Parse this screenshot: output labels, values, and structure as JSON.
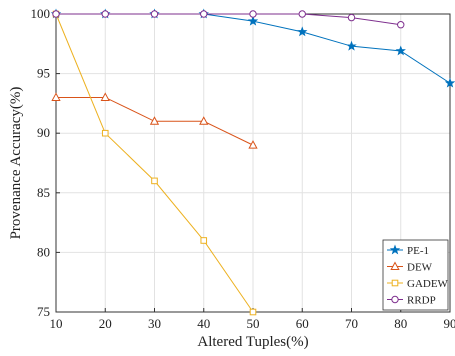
{
  "chart_data": {
    "type": "line",
    "xlabel": "Altered Tuples(%)",
    "ylabel": "Provenance Accuracy(%)",
    "xlim": [
      10,
      90
    ],
    "ylim": [
      75,
      100
    ],
    "xticks": [
      10,
      20,
      30,
      40,
      50,
      60,
      70,
      80,
      90
    ],
    "yticks": [
      75,
      80,
      85,
      90,
      95,
      100
    ],
    "grid": true,
    "legend_position": "bottom-right",
    "series": [
      {
        "name": "PE-1",
        "color": "#0072BD",
        "marker": "star",
        "x": [
          10,
          20,
          30,
          40,
          50,
          60,
          70,
          80,
          90
        ],
        "y": [
          100,
          100,
          100,
          100,
          99.4,
          98.5,
          97.3,
          96.9,
          94.2
        ]
      },
      {
        "name": "DEW",
        "color": "#D95319",
        "marker": "triangle",
        "x": [
          10,
          20,
          30,
          40,
          50
        ],
        "y": [
          93,
          93,
          91,
          91,
          89
        ]
      },
      {
        "name": "GADEW",
        "color": "#EDB120",
        "marker": "square",
        "x": [
          10,
          20,
          30,
          40,
          50
        ],
        "y": [
          100,
          90,
          86,
          81,
          75
        ]
      },
      {
        "name": "RRDP",
        "color": "#7E2F8E",
        "marker": "circle",
        "x": [
          10,
          20,
          30,
          40,
          50,
          60,
          70,
          80
        ],
        "y": [
          100,
          100,
          100,
          100,
          100,
          100,
          99.7,
          99.1
        ]
      }
    ]
  }
}
